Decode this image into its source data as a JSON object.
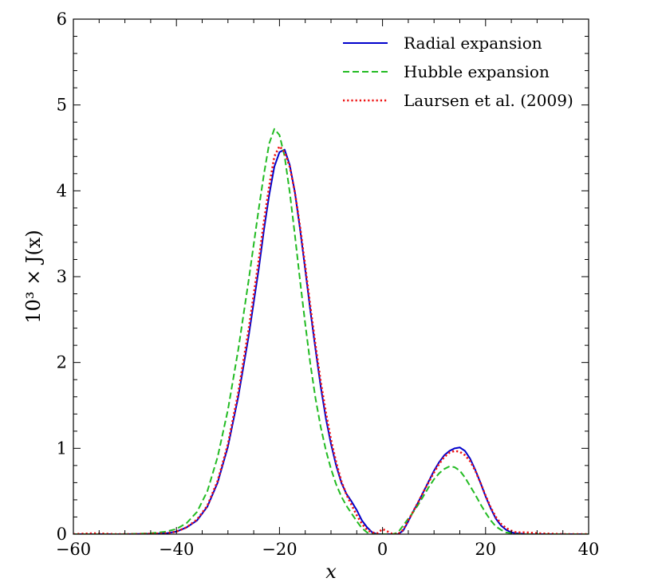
{
  "chart_data": {
    "type": "line",
    "title": "",
    "xlabel": "x",
    "ylabel": "10³ × J(x)",
    "xlim": [
      -60,
      40
    ],
    "ylim": [
      0,
      6
    ],
    "x_ticks": [
      -60,
      -40,
      -20,
      0,
      20,
      40
    ],
    "x_tick_labels": [
      "−60",
      "−40",
      "−20",
      "0",
      "20",
      "40"
    ],
    "y_ticks": [
      0,
      1,
      2,
      3,
      4,
      5,
      6
    ],
    "y_tick_labels": [
      "0",
      "1",
      "2",
      "3",
      "4",
      "5",
      "6"
    ],
    "grid": false,
    "legend_position": "top-right",
    "series": [
      {
        "name": "Radial expansion",
        "color": "#0000cc",
        "style": "solid",
        "x": [
          -60,
          -50,
          -45,
          -42,
          -40,
          -38,
          -36,
          -34,
          -32,
          -30,
          -28,
          -26,
          -24,
          -23,
          -22,
          -21,
          -20,
          -19,
          -18,
          -17,
          -16,
          -15,
          -14,
          -13,
          -12,
          -11,
          -10,
          -9,
          -8,
          -7,
          -6,
          -5,
          -4,
          -3,
          -2,
          -1,
          0,
          1,
          2,
          3,
          4,
          5,
          6,
          7,
          8,
          9,
          10,
          11,
          12,
          13,
          14,
          15,
          16,
          17,
          18,
          19,
          20,
          21,
          22,
          23,
          24,
          25,
          26,
          28,
          30,
          35,
          40
        ],
        "y": [
          0,
          0,
          0.005,
          0.01,
          0.03,
          0.08,
          0.16,
          0.32,
          0.6,
          1.02,
          1.6,
          2.3,
          3.1,
          3.55,
          3.95,
          4.28,
          4.45,
          4.48,
          4.3,
          3.98,
          3.55,
          3.08,
          2.6,
          2.15,
          1.72,
          1.35,
          1.05,
          0.8,
          0.6,
          0.47,
          0.38,
          0.28,
          0.16,
          0.08,
          0.02,
          0.0,
          0.0,
          0.0,
          0.0,
          0.0,
          0.04,
          0.15,
          0.27,
          0.38,
          0.5,
          0.62,
          0.74,
          0.84,
          0.92,
          0.97,
          1.0,
          1.01,
          0.97,
          0.88,
          0.75,
          0.6,
          0.44,
          0.3,
          0.18,
          0.1,
          0.05,
          0.02,
          0.01,
          0.0,
          0.0,
          0.0,
          0.0
        ]
      },
      {
        "name": "Hubble expansion",
        "color": "#22bb22",
        "style": "dashed",
        "x": [
          -60,
          -50,
          -45,
          -42,
          -40,
          -38,
          -36,
          -34,
          -32,
          -30,
          -28,
          -26,
          -24,
          -23,
          -22,
          -21,
          -20,
          -19,
          -18,
          -17,
          -16,
          -15,
          -14,
          -13,
          -12,
          -11,
          -10,
          -9,
          -8,
          -7,
          -6,
          -5,
          -4,
          -3,
          -2,
          -1,
          0,
          1,
          2,
          3,
          4,
          5,
          6,
          7,
          8,
          9,
          10,
          11,
          12,
          13,
          14,
          15,
          16,
          17,
          18,
          19,
          20,
          21,
          22,
          23,
          24,
          25,
          26,
          28,
          30,
          35,
          40
        ],
        "y": [
          0,
          0,
          0.01,
          0.03,
          0.06,
          0.13,
          0.26,
          0.5,
          0.9,
          1.45,
          2.15,
          2.95,
          3.8,
          4.2,
          4.55,
          4.72,
          4.65,
          4.4,
          3.98,
          3.48,
          2.95,
          2.45,
          1.98,
          1.58,
          1.25,
          0.98,
          0.76,
          0.58,
          0.44,
          0.33,
          0.24,
          0.15,
          0.07,
          0.02,
          0.0,
          0.0,
          0.0,
          0.0,
          0.0,
          0.02,
          0.1,
          0.18,
          0.26,
          0.35,
          0.45,
          0.55,
          0.64,
          0.71,
          0.76,
          0.79,
          0.78,
          0.74,
          0.66,
          0.56,
          0.46,
          0.35,
          0.25,
          0.16,
          0.09,
          0.05,
          0.02,
          0.01,
          0.0,
          0.0,
          0.0,
          0.0,
          0.0
        ]
      },
      {
        "name": "Laursen et al. (2009)",
        "color": "#ee1111",
        "style": "dotted",
        "x": [
          -60,
          -56,
          -52,
          -48,
          -45,
          -42,
          -40,
          -38,
          -36,
          -34,
          -32,
          -30,
          -28,
          -26,
          -24,
          -23,
          -22,
          -21,
          -20,
          -19,
          -18,
          -17,
          -16,
          -15,
          -14,
          -13,
          -12,
          -11,
          -10,
          -9,
          -8,
          -7,
          -6,
          -5,
          -4,
          -3,
          -2,
          -1,
          0,
          1,
          2,
          3,
          4,
          5,
          6,
          7,
          8,
          9,
          10,
          11,
          12,
          13,
          14,
          15,
          16,
          17,
          18,
          19,
          20,
          21,
          22,
          23,
          24,
          25,
          26,
          28,
          30,
          35,
          40
        ],
        "y": [
          0,
          0.01,
          0.0,
          0.0,
          0.005,
          0.01,
          0.03,
          0.08,
          0.17,
          0.33,
          0.62,
          1.05,
          1.65,
          2.38,
          3.2,
          3.65,
          4.05,
          4.4,
          4.52,
          4.45,
          4.28,
          3.98,
          3.58,
          3.12,
          2.65,
          2.2,
          1.78,
          1.42,
          1.1,
          0.84,
          0.62,
          0.46,
          0.34,
          0.22,
          0.12,
          0.05,
          0.02,
          0.01,
          0.06,
          0.03,
          0.0,
          0.0,
          0.05,
          0.16,
          0.27,
          0.38,
          0.5,
          0.61,
          0.72,
          0.82,
          0.9,
          0.95,
          0.97,
          0.96,
          0.92,
          0.85,
          0.74,
          0.6,
          0.45,
          0.31,
          0.2,
          0.12,
          0.07,
          0.04,
          0.02,
          0.02,
          0.01,
          0.0,
          0.0
        ]
      }
    ]
  }
}
